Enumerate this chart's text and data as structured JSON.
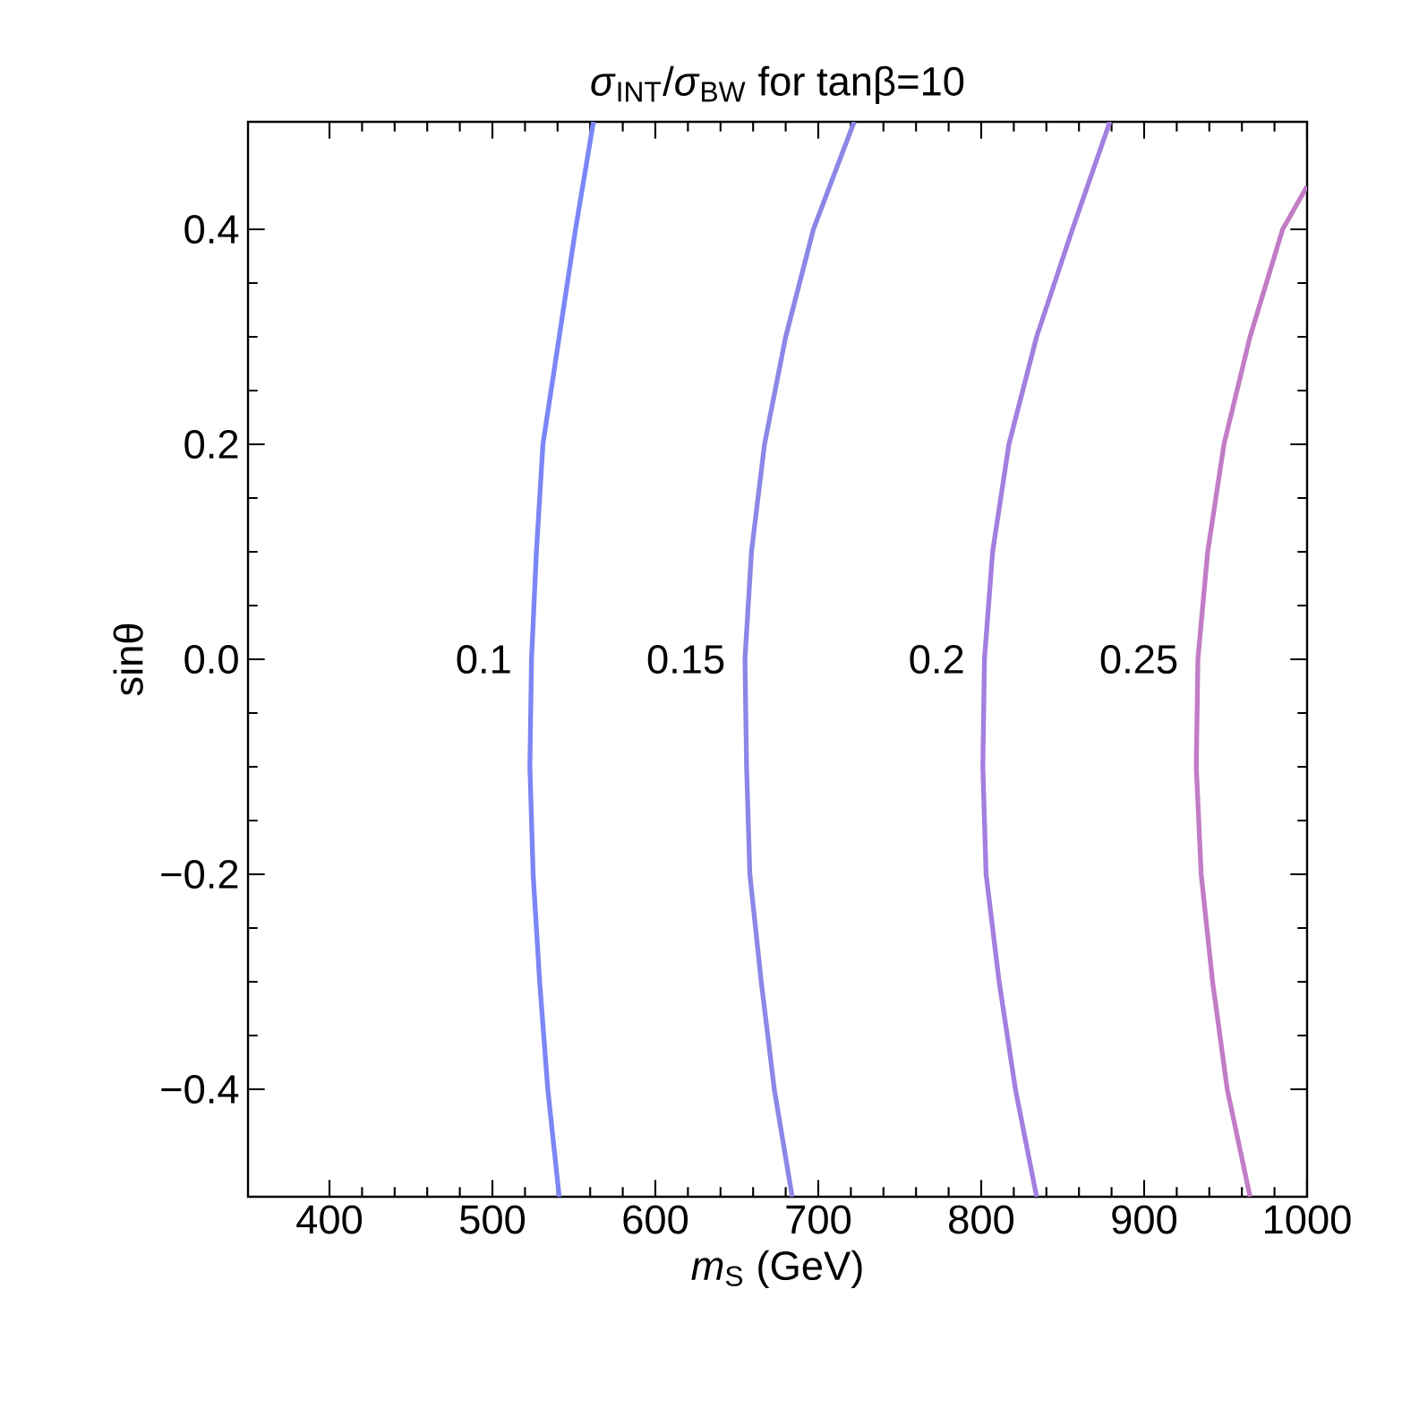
{
  "chart_data": {
    "type": "line",
    "title": "*σ*$_{INT}$/*σ*$_{BW}$ for tanβ=10",
    "xlabel": "*m*$_{S}$ (GeV)",
    "ylabel": "sinθ",
    "xlim": [
      350,
      1000
    ],
    "ylim": [
      -0.5,
      0.5
    ],
    "xticks": [
      400,
      500,
      600,
      700,
      800,
      900,
      1000
    ],
    "yticks": [
      {
        "value": -0.4,
        "label": "−0.4"
      },
      {
        "value": -0.2,
        "label": "−0.2"
      },
      {
        "value": 0,
        "label": "0.0"
      },
      {
        "value": 0.2,
        "label": "0.2"
      },
      {
        "value": 0.4,
        "label": "0.4"
      }
    ],
    "series": [
      {
        "name": "0.1",
        "color": "#7b87f6",
        "x": [
          562,
          551,
          541,
          531,
          527,
          524,
          523,
          525,
          529,
          534,
          541
        ],
        "values": [
          0.5,
          0.4,
          0.3,
          0.2,
          0.1,
          0,
          -0.1,
          -0.2,
          -0.3,
          -0.4,
          -0.5
        ]
      },
      {
        "name": "0.15",
        "color": "#8c87e6",
        "x": [
          722,
          697,
          680,
          667,
          659,
          655,
          656,
          658,
          665,
          673,
          684
        ],
        "values": [
          0.5,
          0.4,
          0.3,
          0.2,
          0.1,
          0,
          -0.1,
          -0.2,
          -0.3,
          -0.4,
          -0.5
        ]
      },
      {
        "name": "0.2",
        "color": "#a37fe0",
        "x": [
          879,
          856,
          834,
          817,
          807,
          802,
          801,
          803,
          811,
          821,
          834
        ],
        "values": [
          0.5,
          0.4,
          0.3,
          0.2,
          0.1,
          0,
          -0.1,
          -0.2,
          -0.3,
          -0.4,
          -0.5
        ]
      },
      {
        "name": "0.25",
        "color": "#c27cc6",
        "x": [
          1000,
          985,
          965,
          949,
          939,
          933,
          932,
          935,
          942,
          951,
          965
        ],
        "values": [
          0.44,
          0.4,
          0.3,
          0.2,
          0.1,
          0,
          -0.1,
          -0.2,
          -0.3,
          -0.4,
          -0.5
        ]
      }
    ]
  }
}
